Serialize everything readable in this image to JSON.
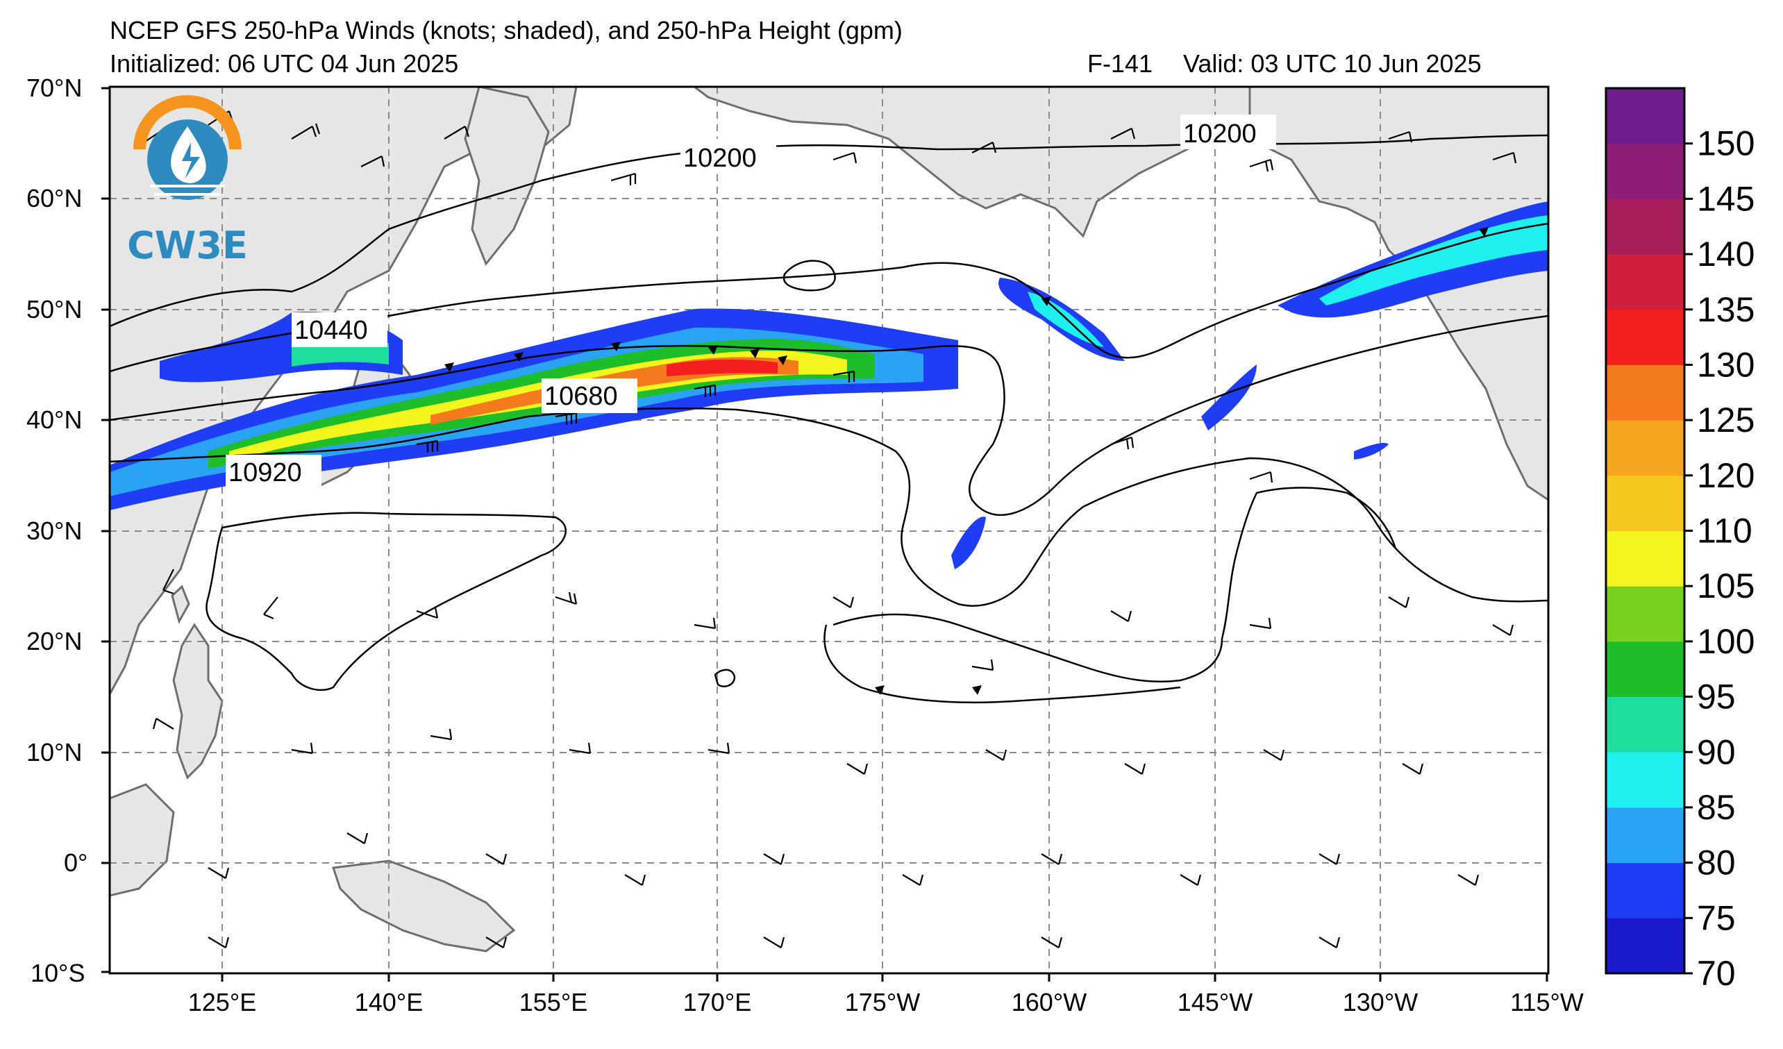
{
  "header": {
    "title": "NCEP GFS 250-hPa Winds (knots; shaded), and 250-hPa Height (gpm)",
    "initialized": "Initialized: 06 UTC 04 Jun 2025",
    "forecast_hour": "F-141",
    "valid": "Valid: 03 UTC 10 Jun 2025"
  },
  "logo": {
    "text": "CW3E",
    "colors": {
      "orange": "#f7941d",
      "blue": "#2e8bc0"
    }
  },
  "map": {
    "lon_range_deg_east": [
      110,
      245
    ],
    "lat_range": [
      -10,
      70
    ],
    "land_color": "#e6e6e6",
    "ocean_color": "#ffffff",
    "coast_color": "#6e6e6e",
    "grid": "dashed",
    "lat_ticks": [
      "70°N",
      "60°N",
      "50°N",
      "40°N",
      "30°N",
      "20°N",
      "10°N",
      "0°",
      "10°S"
    ],
    "lon_ticks": [
      "125°E",
      "140°E",
      "155°E",
      "170°E",
      "175°W",
      "160°W",
      "145°W",
      "130°W",
      "115°W"
    ],
    "height_contour_labels": [
      "10200",
      "10200",
      "10440",
      "10680",
      "10920"
    ]
  },
  "colorbar": {
    "labels": [
      "150",
      "145",
      "140",
      "135",
      "130",
      "125",
      "120",
      "110",
      "105",
      "100",
      "95",
      "90",
      "85",
      "80",
      "75",
      "70"
    ],
    "colors": [
      "#1a1acc",
      "#1e3df5",
      "#2aa3f5",
      "#1ef0f0",
      "#1ede9e",
      "#1ebe2a",
      "#78d01e",
      "#f5f51e",
      "#f5c81e",
      "#f5a51e",
      "#f57a1e",
      "#f51e1e",
      "#d01e3c",
      "#a81e5a",
      "#8c1e78",
      "#6e1e8c"
    ],
    "unit": "knots"
  }
}
